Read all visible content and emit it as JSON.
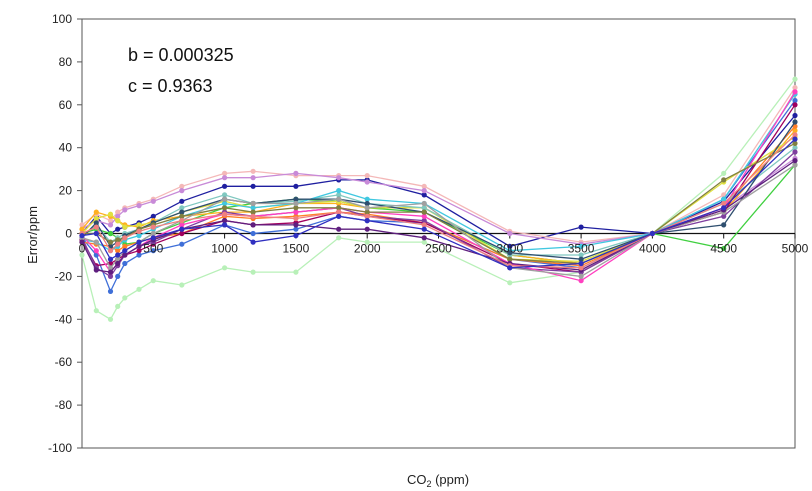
{
  "chart_data": {
    "type": "line",
    "title": "",
    "xlabel": "CO",
    "xlabel_sub": "2",
    "xlabel_unit": " (ppm)",
    "ylabel": "Error/ppm",
    "xlim": [
      0,
      5000
    ],
    "ylim": [
      -100,
      100
    ],
    "x_ticks": [
      0,
      500,
      1000,
      1500,
      2000,
      2500,
      3000,
      3500,
      4000,
      4500,
      5000
    ],
    "y_ticks": [
      100,
      80,
      60,
      40,
      20,
      0,
      -20,
      -40,
      -60,
      -80,
      -100
    ],
    "grid": "horizontal",
    "legend": "none",
    "annotations": [
      "b = 0.000325",
      "c = 0.9363"
    ],
    "x": [
      0,
      100,
      200,
      250,
      300,
      400,
      500,
      700,
      1000,
      1200,
      1500,
      1800,
      2000,
      2400,
      3000,
      3500,
      4000,
      4500,
      5000
    ],
    "series": [
      {
        "color": "#1f1fa0",
        "values": [
          0,
          8,
          0,
          2,
          3,
          5,
          8,
          15,
          22,
          22,
          22,
          25,
          25,
          18,
          -6,
          3,
          0,
          15,
          55
        ]
      },
      {
        "color": "#f4b8b8",
        "values": [
          4,
          9,
          6,
          10,
          12,
          14,
          16,
          22,
          28,
          29,
          27,
          27,
          27,
          22,
          1,
          -4,
          0,
          18,
          68
        ]
      },
      {
        "color": "#c88ad8",
        "values": [
          2,
          6,
          4,
          8,
          11,
          13,
          15,
          20,
          26,
          26,
          28,
          26,
          24,
          20,
          0,
          -5,
          0,
          12,
          35
        ]
      },
      {
        "color": "#b8f0b8",
        "values": [
          -10,
          -36,
          -40,
          -34,
          -30,
          -26,
          -22,
          -24,
          -16,
          -18,
          -18,
          -2,
          -4,
          -4,
          -23,
          -18,
          0,
          28,
          72
        ]
      },
      {
        "color": "#40d040",
        "values": [
          0,
          2,
          0,
          -2,
          -5,
          -4,
          0,
          5,
          12,
          14,
          16,
          15,
          12,
          10,
          -10,
          -14,
          0,
          -7,
          32
        ]
      },
      {
        "color": "#3f6fd8",
        "values": [
          -2,
          -10,
          -27,
          -20,
          -14,
          -10,
          -8,
          -5,
          4,
          0,
          2,
          8,
          6,
          5,
          -12,
          -16,
          0,
          16,
          62
        ]
      },
      {
        "color": "#ffb020",
        "values": [
          2,
          10,
          8,
          6,
          4,
          3,
          6,
          8,
          10,
          10,
          14,
          14,
          12,
          12,
          -10,
          -14,
          0,
          10,
          48
        ]
      },
      {
        "color": "#ff7f27",
        "values": [
          -4,
          -5,
          -6,
          -8,
          -6,
          -4,
          -2,
          0,
          8,
          7,
          8,
          10,
          9,
          5,
          -12,
          -15,
          0,
          12,
          50
        ]
      },
      {
        "color": "#e0e040",
        "values": [
          0,
          7,
          9,
          6,
          3,
          4,
          5,
          10,
          15,
          12,
          14,
          15,
          12,
          12,
          -12,
          -13,
          0,
          24,
          45
        ]
      },
      {
        "color": "#80c8c0",
        "values": [
          -1,
          4,
          -4,
          -2,
          0,
          2,
          5,
          12,
          18,
          14,
          15,
          18,
          14,
          12,
          -10,
          -10,
          0,
          14,
          40
        ]
      },
      {
        "color": "#40c8e0",
        "values": [
          -3,
          -4,
          -8,
          -6,
          -3,
          -1,
          2,
          8,
          14,
          12,
          14,
          20,
          16,
          14,
          -8,
          -6,
          0,
          16,
          65
        ]
      },
      {
        "color": "#2f4f6f",
        "values": [
          -2,
          5,
          -6,
          -4,
          -1,
          2,
          5,
          10,
          16,
          14,
          16,
          16,
          14,
          10,
          -9,
          -12,
          0,
          4,
          52
        ]
      },
      {
        "color": "#a0005f",
        "values": [
          -3,
          -15,
          -14,
          -12,
          -10,
          -8,
          -5,
          0,
          6,
          4,
          5,
          10,
          8,
          5,
          -14,
          -18,
          0,
          10,
          60
        ]
      },
      {
        "color": "#7f3f9f",
        "values": [
          -2,
          -16,
          -20,
          -15,
          -10,
          -6,
          -4,
          2,
          10,
          8,
          10,
          12,
          8,
          6,
          -16,
          -18,
          0,
          8,
          38
        ]
      },
      {
        "color": "#ff40c0",
        "values": [
          -1,
          -8,
          -18,
          -14,
          -10,
          -6,
          -2,
          4,
          9,
          8,
          10,
          12,
          10,
          8,
          -14,
          -22,
          0,
          12,
          66
        ]
      },
      {
        "color": "#808040",
        "values": [
          0,
          0,
          -4,
          -3,
          -2,
          2,
          4,
          8,
          12,
          10,
          12,
          12,
          10,
          10,
          -12,
          -14,
          0,
          25,
          42
        ]
      },
      {
        "color": "#a0a0a0",
        "values": [
          -2,
          -4,
          -16,
          -12,
          -8,
          -4,
          0,
          6,
          16,
          14,
          14,
          16,
          12,
          14,
          -16,
          -20,
          0,
          10,
          32
        ]
      },
      {
        "color": "#5f1f7f",
        "values": [
          -4,
          -17,
          -18,
          -14,
          -10,
          -6,
          -3,
          2,
          6,
          4,
          4,
          2,
          2,
          -2,
          -14,
          -17,
          0,
          11,
          34
        ]
      },
      {
        "color": "#f08080",
        "values": [
          0,
          3,
          -8,
          -5,
          -2,
          1,
          3,
          6,
          9,
          8,
          7,
          10,
          8,
          4,
          -15,
          -16,
          0,
          14,
          46
        ]
      },
      {
        "color": "#3030c0",
        "values": [
          -1,
          0,
          -12,
          -10,
          -8,
          -4,
          -2,
          2,
          4,
          -4,
          -1,
          8,
          6,
          2,
          -16,
          -14,
          0,
          12,
          44
        ]
      }
    ]
  }
}
